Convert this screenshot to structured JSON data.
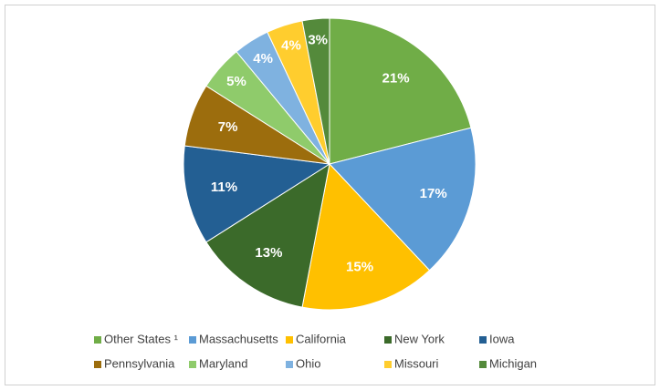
{
  "chart_data": {
    "type": "pie",
    "categories": [
      "Other States ¹",
      "Massachusetts",
      "California",
      "New York",
      "Iowa",
      "Pennsylvania",
      "Maryland",
      "Ohio",
      "Missouri",
      "Michigan"
    ],
    "values": [
      21,
      17,
      15,
      13,
      11,
      7,
      5,
      4,
      4,
      3
    ],
    "value_labels": [
      "21%",
      "17%",
      "15%",
      "13%",
      "11%",
      "7%",
      "5%",
      "4%",
      "4%",
      "3%"
    ],
    "colors": [
      "#70ad47",
      "#5b9bd5",
      "#ffc000",
      "#3b6a2a",
      "#235f93",
      "#9c6d0d",
      "#8fcb6b",
      "#7fb2e0",
      "#ffcd2e",
      "#548a3b"
    ],
    "legend": "bottom"
  }
}
